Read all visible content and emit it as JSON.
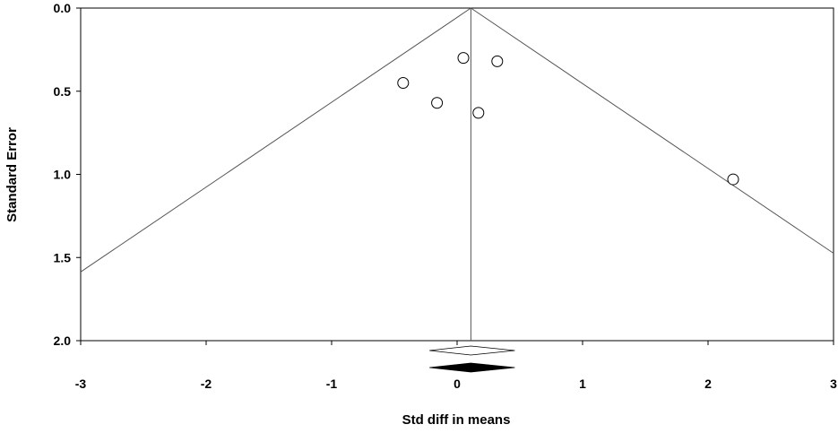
{
  "chart_data": {
    "type": "scatter",
    "subtype": "funnel-plot",
    "title": "",
    "xlabel": "Std diff in means",
    "ylabel": "Standard Error",
    "xlim": [
      -3,
      3
    ],
    "ylim": [
      2.0,
      0.0
    ],
    "y_inverted": true,
    "x_ticks": [
      {
        "value": -3,
        "label": "-3"
      },
      {
        "value": -2,
        "label": "-2"
      },
      {
        "value": -1,
        "label": "-1"
      },
      {
        "value": 0,
        "label": "0"
      },
      {
        "value": 1,
        "label": "1"
      },
      {
        "value": 2,
        "label": "2"
      },
      {
        "value": 3,
        "label": "3"
      }
    ],
    "y_ticks": [
      {
        "value": 0.0,
        "label": "0.0"
      },
      {
        "value": 0.5,
        "label": "0.5"
      },
      {
        "value": 1.0,
        "label": "1.0"
      },
      {
        "value": 1.5,
        "label": "1.5"
      },
      {
        "value": 2.0,
        "label": "2.0"
      }
    ],
    "points": [
      {
        "x": 0.05,
        "y": 0.3
      },
      {
        "x": 0.32,
        "y": 0.32
      },
      {
        "x": -0.43,
        "y": 0.45
      },
      {
        "x": -0.16,
        "y": 0.57
      },
      {
        "x": 0.17,
        "y": 0.63
      },
      {
        "x": 2.2,
        "y": 1.03
      }
    ],
    "pooled_effect": 0.11,
    "funnel_half_slope": 1.96,
    "summary_diamonds": [
      {
        "style": "open",
        "center": 0.11,
        "lower": -0.22,
        "upper": 0.46
      },
      {
        "style": "filled",
        "center": 0.11,
        "lower": -0.22,
        "upper": 0.46
      }
    ],
    "grid": false,
    "legend": "none",
    "colors": {
      "ink": "#000000",
      "line": "#555555",
      "filled_diamond": "#000000",
      "open_diamond": "#ffffff"
    }
  }
}
